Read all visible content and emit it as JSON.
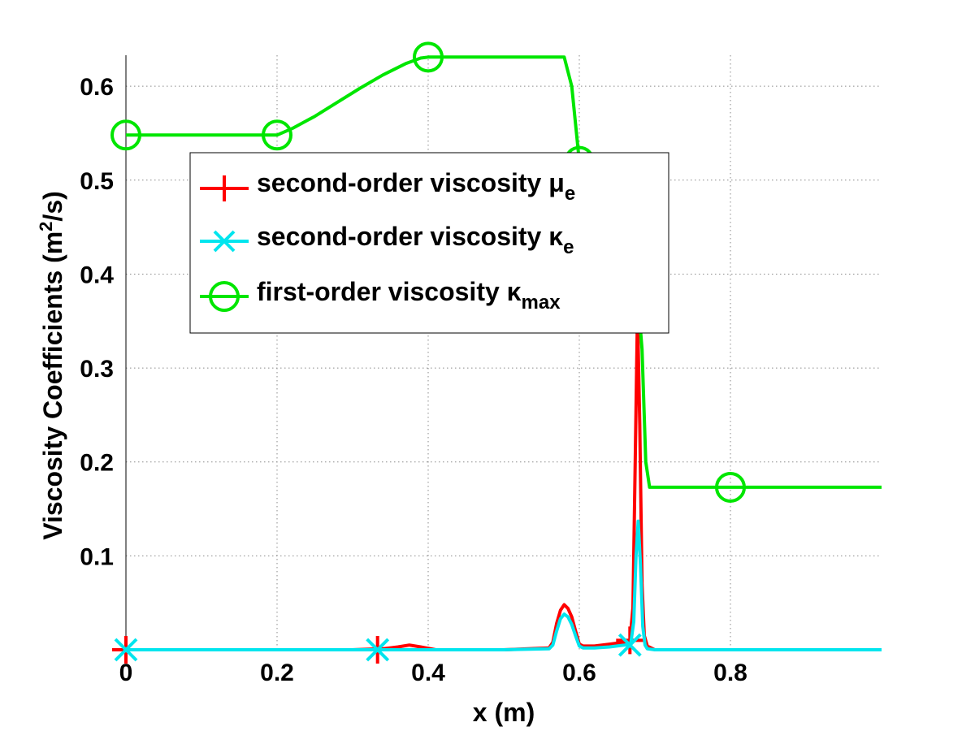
{
  "chart_data": {
    "type": "line",
    "xlabel": "x (m)",
    "ylabel": "Viscosity Coefficients (m²/s)",
    "ylabel_parts": {
      "before": "Viscosity Coefficients (m",
      "sup": "2",
      "after": "/s)"
    },
    "xlim": [
      0,
      1.0
    ],
    "ylim": [
      0,
      0.633
    ],
    "xticks": [
      0,
      0.2,
      0.4,
      0.6,
      0.8
    ],
    "xtick_labels": [
      "0",
      "0.2",
      "0.4",
      "0.6",
      "0.8"
    ],
    "yticks": [
      0.1,
      0.2,
      0.3,
      0.4,
      0.5,
      0.6
    ],
    "ytick_labels": [
      "0.1",
      "0.2",
      "0.3",
      "0.4",
      "0.5",
      "0.6"
    ],
    "grid": true,
    "legend_placement": "upper-left-center",
    "series": [
      {
        "name": "second-order viscosity μe",
        "legend": {
          "text": "second-order viscosity ",
          "greek": "μ",
          "sub": "e"
        },
        "color": "#ff0000",
        "marker": "plus",
        "x": [
          0,
          0.3,
          0.34,
          0.36,
          0.375,
          0.39,
          0.41,
          0.5,
          0.56,
          0.565,
          0.57,
          0.575,
          0.58,
          0.585,
          0.59,
          0.595,
          0.6,
          0.605,
          0.62,
          0.64,
          0.66,
          0.667,
          0.671,
          0.674,
          0.677,
          0.68,
          0.683,
          0.686,
          0.69,
          0.7,
          0.75,
          1.0
        ],
        "y": [
          0,
          0,
          0.001,
          0.003,
          0.005,
          0.003,
          0,
          0,
          0.002,
          0.008,
          0.028,
          0.042,
          0.048,
          0.044,
          0.035,
          0.02,
          0.006,
          0.004,
          0.004,
          0.006,
          0.008,
          0.01,
          0.045,
          0.2,
          0.36,
          0.24,
          0.07,
          0.015,
          0.004,
          0,
          0,
          0
        ],
        "marker_x": [
          0,
          0.333,
          0.667
        ],
        "marker_y": [
          0,
          0,
          0.01
        ]
      },
      {
        "name": "second-order viscosity κe",
        "legend": {
          "text": "second-order viscosity ",
          "greek": "κ",
          "sub": "e"
        },
        "color": "#00e5ee",
        "marker": "x",
        "x": [
          0,
          0.5,
          0.56,
          0.565,
          0.57,
          0.575,
          0.58,
          0.585,
          0.59,
          0.595,
          0.6,
          0.605,
          0.62,
          0.64,
          0.66,
          0.668,
          0.672,
          0.675,
          0.678,
          0.681,
          0.684,
          0.687,
          0.69,
          0.7,
          1.0
        ],
        "y": [
          0,
          0,
          0.001,
          0.005,
          0.02,
          0.033,
          0.038,
          0.035,
          0.027,
          0.015,
          0.004,
          0.002,
          0.002,
          0.003,
          0.005,
          0.006,
          0.03,
          0.1,
          0.137,
          0.09,
          0.025,
          0.005,
          0.001,
          0,
          0
        ],
        "marker_x": [
          0,
          0.333,
          0.667
        ],
        "marker_y": [
          0,
          0,
          0.005
        ]
      },
      {
        "name": "first-order viscosity κmax",
        "legend": {
          "text": "first-order viscosity ",
          "greek": "κ",
          "sub": "max"
        },
        "color": "#00e600",
        "marker": "circle",
        "x": [
          0,
          0.2,
          0.22,
          0.25,
          0.28,
          0.31,
          0.34,
          0.37,
          0.39,
          0.4,
          0.58,
          0.59,
          0.6,
          0.61,
          0.63,
          0.65,
          0.66,
          0.675,
          0.683,
          0.688,
          0.693,
          0.7,
          1.0
        ],
        "y": [
          0.548,
          0.548,
          0.555,
          0.568,
          0.583,
          0.598,
          0.612,
          0.624,
          0.63,
          0.631,
          0.631,
          0.6,
          0.52,
          0.5,
          0.47,
          0.45,
          0.43,
          0.4,
          0.32,
          0.2,
          0.173,
          0.173,
          0.173
        ],
        "marker_x": [
          0,
          0.2,
          0.4,
          0.6,
          0.8
        ],
        "marker_y": [
          0.548,
          0.548,
          0.631,
          0.52,
          0.173
        ]
      }
    ]
  }
}
